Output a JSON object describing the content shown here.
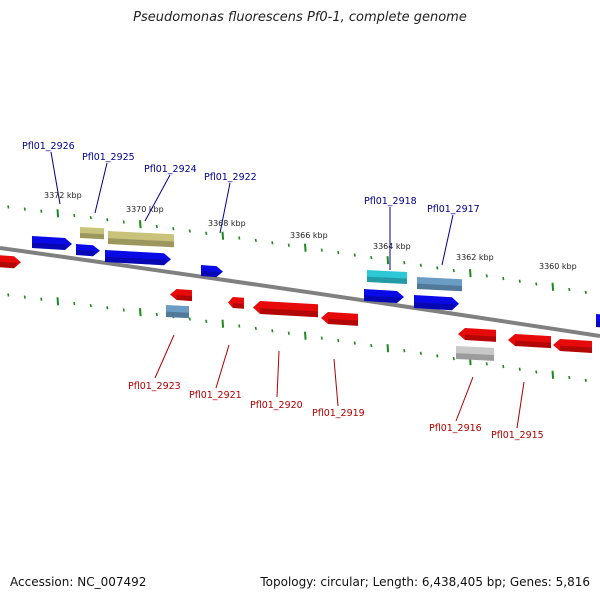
{
  "title": "Pseudomonas fluorescens Pf0-1, complete genome",
  "footer": {
    "accession": "Accession: NC_007492",
    "summary": "Topology: circular; Length: 6,438,405 bp; Genes: 5,816"
  },
  "colors": {
    "forward_gene": "#0a0ae6",
    "reverse_gene": "#e60a0a",
    "olive_feature": "#c8c27a",
    "cyan_feature": "#2ec7d6",
    "steel_feature": "#6a9cc4",
    "grey_feature": "#c8c8c8",
    "backbone": "#808080",
    "tick": "#1a8a1a",
    "forward_label": "#00008b",
    "reverse_label": "#b00000"
  },
  "ruler_labels": [
    "3372 kbp",
    "3370 kbp",
    "3368 kbp",
    "3366 kbp",
    "3364 kbp",
    "3362 kbp",
    "3360 kbp"
  ],
  "forward_gene_labels": [
    "Pfl01_2926",
    "Pfl01_2925",
    "Pfl01_2924",
    "Pfl01_2922",
    "Pfl01_2918",
    "Pfl01_2917"
  ],
  "reverse_gene_labels": [
    "Pfl01_2923",
    "Pfl01_2921",
    "Pfl01_2920",
    "Pfl01_2919",
    "Pfl01_2916",
    "Pfl01_2915"
  ]
}
